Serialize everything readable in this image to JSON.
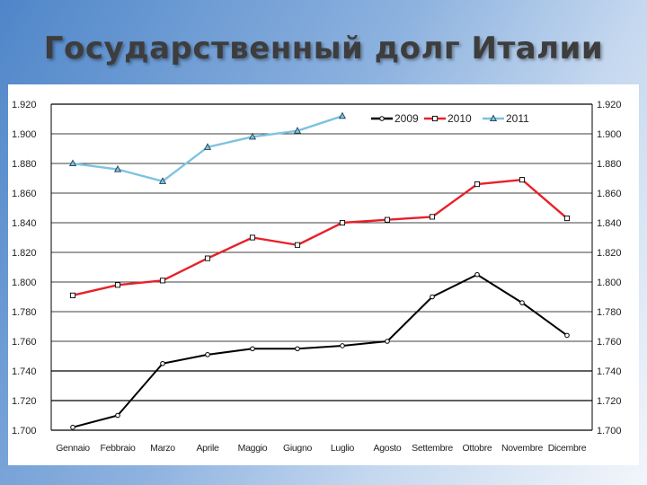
{
  "slide": {
    "title": "Государственный долг Италии"
  },
  "chart_data": {
    "type": "line",
    "title": "Государственный долг Италии",
    "xlabel": "",
    "ylabel": "",
    "categories": [
      "Gennaio",
      "Febbraio",
      "Marzo",
      "Aprile",
      "Maggio",
      "Giugno",
      "Luglio",
      "Agosto",
      "Settembre",
      "Ottobre",
      "Novembre",
      "Dicembre"
    ],
    "y_ticks": [
      "1.700",
      "1.720",
      "1.740",
      "1.760",
      "1.780",
      "1.800",
      "1.820",
      "1.840",
      "1.860",
      "1.880",
      "1.900",
      "1.920"
    ],
    "ylim": [
      1700,
      1920
    ],
    "grid": true,
    "legend_position": "top-right",
    "series": [
      {
        "name": "2009",
        "color": "#000000",
        "marker": "circle",
        "values": [
          1702,
          1710,
          1745,
          1751,
          1755,
          1755,
          1757,
          1760,
          1790,
          1805,
          1786,
          1764
        ]
      },
      {
        "name": "2010",
        "color": "#e8202a",
        "marker": "square",
        "values": [
          1791,
          1798,
          1801,
          1816,
          1830,
          1825,
          1840,
          1842,
          1844,
          1866,
          1869,
          1843
        ]
      },
      {
        "name": "2011",
        "color": "#7ec3e0",
        "marker": "triangle",
        "values": [
          1880,
          1876,
          1868,
          1891,
          1898,
          1902,
          1912,
          null,
          null,
          null,
          null,
          null
        ]
      }
    ]
  }
}
